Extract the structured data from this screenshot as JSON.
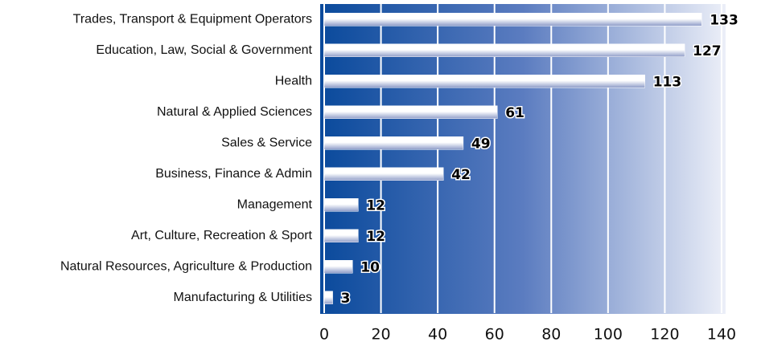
{
  "chart_data": {
    "type": "bar",
    "orientation": "horizontal",
    "categories": [
      "Trades, Transport & Equipment Operators",
      "Education, Law, Social & Government",
      "Health",
      "Natural & Applied Sciences",
      "Sales & Service",
      "Business, Finance & Admin",
      "Management",
      "Art, Culture, Recreation & Sport",
      "Natural Resources, Agriculture & Production",
      "Manufacturing & Utilities"
    ],
    "values": [
      133,
      127,
      113,
      61,
      49,
      42,
      12,
      12,
      10,
      3
    ],
    "color": "#ffffff",
    "xlim": [
      0,
      140
    ],
    "xticks": [
      0,
      20,
      40,
      60,
      80,
      100,
      120,
      140
    ],
    "grid": true
  }
}
